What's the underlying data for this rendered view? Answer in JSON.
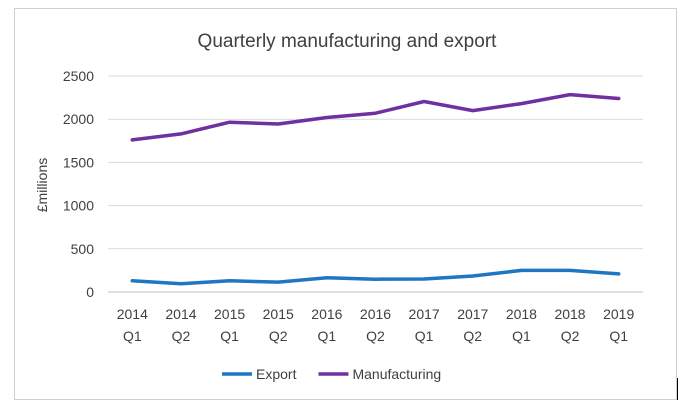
{
  "chart_data": {
    "type": "line",
    "title": "Quarterly manufacturing and export",
    "xlabel": "",
    "ylabel": "£millions",
    "ylim": [
      0,
      2500
    ],
    "yticks": [
      0,
      500,
      1000,
      1500,
      2000,
      2500
    ],
    "grid": true,
    "legend": "bottom",
    "categories": [
      [
        "2014",
        "Q1"
      ],
      [
        "2014",
        "Q2"
      ],
      [
        "2015",
        "Q1"
      ],
      [
        "2015",
        "Q2"
      ],
      [
        "2016",
        "Q1"
      ],
      [
        "2016",
        "Q2"
      ],
      [
        "2017",
        "Q1"
      ],
      [
        "2017",
        "Q2"
      ],
      [
        "2018",
        "Q1"
      ],
      [
        "2018",
        "Q2"
      ],
      [
        "2019",
        "Q1"
      ]
    ],
    "series": [
      {
        "name": "Export",
        "color": "#1f77c4",
        "values": [
          130,
          95,
          130,
          115,
          165,
          148,
          150,
          185,
          250,
          250,
          210
        ]
      },
      {
        "name": "Manufacturing",
        "color": "#7030a0",
        "values": [
          1760,
          1830,
          1965,
          1945,
          2020,
          2070,
          2205,
          2100,
          2180,
          2285,
          2240
        ]
      }
    ]
  }
}
